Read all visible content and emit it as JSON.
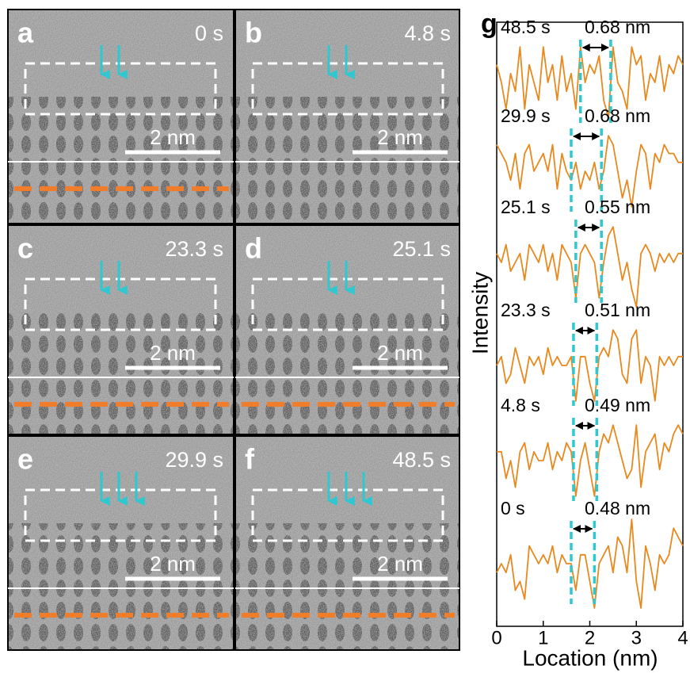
{
  "panels": [
    {
      "label": "a",
      "time": "0 s",
      "scale": "2 nm"
    },
    {
      "label": "b",
      "time": "4.8 s",
      "scale": "2 nm"
    },
    {
      "label": "c",
      "time": "23.3 s",
      "scale": "2 nm"
    },
    {
      "label": "d",
      "time": "25.1 s",
      "scale": "2 nm"
    },
    {
      "label": "e",
      "time": "29.9 s",
      "scale": "2 nm"
    },
    {
      "label": "f",
      "time": "48.5 s",
      "scale": "2 nm"
    }
  ],
  "chart_data": {
    "type": "line",
    "panel_label": "g",
    "xlabel": "Location (nm)",
    "ylabel": "Intensity",
    "xlim": [
      0,
      4
    ],
    "xticks": [
      0,
      1,
      2,
      3,
      4
    ],
    "x": [
      0,
      0.1,
      0.2,
      0.3,
      0.4,
      0.5,
      0.6,
      0.7,
      0.8,
      0.9,
      1,
      1.1,
      1.2,
      1.3,
      1.4,
      1.5,
      1.6,
      1.7,
      1.8,
      1.9,
      2,
      2.1,
      2.2,
      2.3,
      2.4,
      2.5,
      2.6,
      2.7,
      2.8,
      2.9,
      3,
      3.1,
      3.2,
      3.3,
      3.4,
      3.5,
      3.6,
      3.7,
      3.8,
      3.9,
      4
    ],
    "series": [
      {
        "name": "48.5 s",
        "annotation": "0.68 nm",
        "markers": [
          1.8,
          2.45
        ],
        "color": "#e8891e",
        "values": [
          0.7,
          0.5,
          0.2,
          0.6,
          0.4,
          0.9,
          0.2,
          0.7,
          0.5,
          0.3,
          0.9,
          0.5,
          0.7,
          0.3,
          0.8,
          0.4,
          0.6,
          0.2,
          0.9,
          0.5,
          0.7,
          0.6,
          0.8,
          0.3,
          0.1,
          0.9,
          0.5,
          0.4,
          0.2,
          0.9,
          0.7,
          0.8,
          0.3,
          0.6,
          0.5,
          0.8,
          0.4,
          0.7,
          0.6,
          0.8,
          0.7
        ]
      },
      {
        "name": "29.9 s",
        "annotation": "0.68 nm",
        "markers": [
          1.6,
          2.25
        ],
        "color": "#e8891e",
        "values": [
          0.8,
          0.7,
          0.6,
          0.4,
          0.7,
          0.3,
          0.7,
          0.8,
          0.5,
          0.6,
          0.7,
          0.5,
          0.8,
          0.3,
          0.7,
          0.5,
          0.4,
          0.6,
          0.3,
          0.5,
          0.4,
          0.6,
          0.3,
          0.5,
          0.9,
          0.8,
          0.5,
          0.2,
          0.4,
          0.1,
          0.5,
          0.8,
          0.7,
          0.3,
          0.7,
          0.6,
          0.8,
          0.7,
          0.7,
          0.6,
          0.6
        ]
      },
      {
        "name": "25.1 s",
        "annotation": "0.55 nm",
        "markers": [
          1.7,
          2.25
        ],
        "color": "#e8891e",
        "values": [
          0.6,
          0.5,
          0.7,
          0.4,
          0.5,
          0.6,
          0.3,
          0.7,
          0.6,
          0.5,
          0.7,
          0.4,
          0.6,
          0.3,
          0.7,
          0.6,
          0.5,
          0.1,
          0.6,
          0.7,
          0.6,
          0.5,
          0.1,
          0.5,
          0.8,
          0.9,
          0.6,
          0.3,
          0.5,
          0.2,
          0.0,
          0.6,
          0.7,
          0.6,
          0.4,
          0.6,
          0.5,
          0.6,
          0.5,
          0.6,
          0.6
        ]
      },
      {
        "name": "23.3 s",
        "annotation": "0.51 nm",
        "markers": [
          1.65,
          2.15
        ],
        "color": "#e8891e",
        "values": [
          0.5,
          0.6,
          0.3,
          0.4,
          0.7,
          0.5,
          0.3,
          0.6,
          0.5,
          0.6,
          0.4,
          0.7,
          0.5,
          0.6,
          0.5,
          0.5,
          0.6,
          0.1,
          0.6,
          0.6,
          0.3,
          0.1,
          0.6,
          0.7,
          0.6,
          0.9,
          0.8,
          0.4,
          0.3,
          0.8,
          0.9,
          0.3,
          0.6,
          0.5,
          0.1,
          0.6,
          0.5,
          0.6,
          0.5,
          0.6,
          0.6
        ]
      },
      {
        "name": "4.8 s",
        "annotation": "0.49 nm",
        "markers": [
          1.65,
          2.15
        ],
        "color": "#e8891e",
        "values": [
          0.6,
          0.6,
          0.3,
          0.5,
          0.2,
          0.6,
          0.7,
          0.4,
          0.6,
          0.5,
          0.5,
          0.7,
          0.4,
          0.6,
          0.5,
          0.7,
          0.6,
          0.1,
          0.5,
          0.7,
          0.4,
          0.1,
          0.6,
          0.8,
          0.7,
          0.9,
          0.7,
          0.5,
          0.3,
          0.4,
          0.9,
          0.2,
          0.6,
          0.7,
          0.8,
          0.4,
          0.7,
          0.6,
          0.8,
          0.9,
          0.8
        ]
      },
      {
        "name": "0 s",
        "annotation": "0.48 nm",
        "markers": [
          1.6,
          2.1
        ],
        "color": "#e8891e",
        "values": [
          0.4,
          0.5,
          0.4,
          0.6,
          0.2,
          0.3,
          0.1,
          0.7,
          0.6,
          0.5,
          0.6,
          0.5,
          0.7,
          0.4,
          0.6,
          0.5,
          0.5,
          0.2,
          0.6,
          0.6,
          0.3,
          0.0,
          0.5,
          0.6,
          0.7,
          0.4,
          0.8,
          0.7,
          0.4,
          1.0,
          0.3,
          0.0,
          0.7,
          0.5,
          0.2,
          0.6,
          0.5,
          0.6,
          0.9,
          0.8,
          0.7
        ]
      }
    ]
  }
}
